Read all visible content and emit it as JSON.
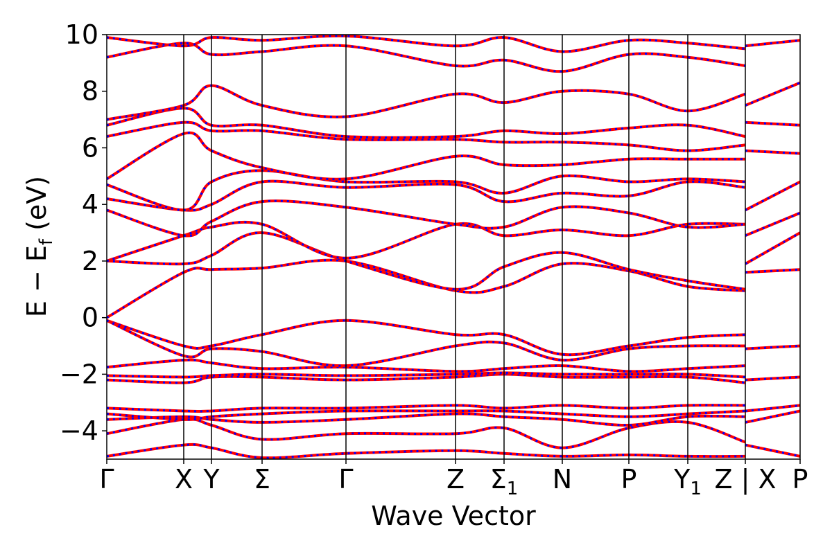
{
  "chart_data": {
    "type": "line",
    "title": "",
    "xlabel": "Wave Vector",
    "ylabel": "E − E_f (eV)",
    "ylabel_main": "E − E",
    "ylabel_sub": "f",
    "ylabel_unit": " (eV)",
    "ylim": [
      -5,
      10
    ],
    "yticks": [
      -4,
      -2,
      0,
      2,
      4,
      6,
      8,
      10
    ],
    "yticklabels": [
      "−4",
      "−2",
      "0",
      "2",
      "4",
      "6",
      "8",
      "10"
    ],
    "grid": false,
    "legend": "none",
    "xlim": [
      0,
      1
    ],
    "high_symmetry_points": [
      {
        "label": "Γ",
        "x": 0.0
      },
      {
        "label": "X",
        "x": 0.111
      },
      {
        "label": "Y",
        "x": 0.151
      },
      {
        "label": "Σ",
        "x": 0.224
      },
      {
        "label": "Γ",
        "x": 0.345
      },
      {
        "label": "Z",
        "x": 0.503
      },
      {
        "label": "Σ",
        "sub": "1",
        "x": 0.573
      },
      {
        "label": "N",
        "x": 0.657
      },
      {
        "label": "P",
        "x": 0.753
      },
      {
        "label": "Y",
        "sub": "1",
        "x": 0.838
      },
      {
        "label": "Z | X",
        "x": 0.921
      },
      {
        "label": "P",
        "x": 1.0
      }
    ],
    "series_style": [
      {
        "color": "#ff0000",
        "dash": "solid"
      },
      {
        "color": "#0000ff",
        "dash": "dotted"
      }
    ],
    "bands": [
      {
        "x": [
          0,
          0.111,
          0.151,
          0.224,
          0.345,
          0.503,
          0.573,
          0.657,
          0.753,
          0.838,
          0.921
        ],
        "y": [
          -4.9,
          -4.5,
          -4.6,
          -4.95,
          -4.8,
          -4.7,
          -4.8,
          -4.9,
          -4.85,
          -4.9,
          -4.9
        ]
      },
      {
        "x": [
          0,
          0.111,
          0.151,
          0.224,
          0.345,
          0.503,
          0.573,
          0.657,
          0.753,
          0.838,
          0.921
        ],
        "y": [
          -4.1,
          -3.6,
          -3.8,
          -4.3,
          -4.1,
          -4.1,
          -3.9,
          -4.6,
          -3.9,
          -3.7,
          -4.4
        ]
      },
      {
        "x": [
          0,
          0.111,
          0.151,
          0.224,
          0.345,
          0.503,
          0.573,
          0.657,
          0.753,
          0.838,
          0.921
        ],
        "y": [
          -3.6,
          -3.5,
          -3.6,
          -3.7,
          -3.6,
          -3.4,
          -3.5,
          -3.6,
          -3.8,
          -3.5,
          -3.5
        ]
      },
      {
        "x": [
          0,
          0.111,
          0.151,
          0.224,
          0.345,
          0.503,
          0.573,
          0.657,
          0.753,
          0.838,
          0.921
        ],
        "y": [
          -3.4,
          -3.6,
          -3.5,
          -3.4,
          -3.3,
          -3.3,
          -3.3,
          -3.4,
          -3.5,
          -3.4,
          -3.3
        ]
      },
      {
        "x": [
          0,
          0.111,
          0.151,
          0.224,
          0.345,
          0.503,
          0.573,
          0.657,
          0.753,
          0.838,
          0.921
        ],
        "y": [
          -3.2,
          -3.3,
          -3.3,
          -3.2,
          -3.2,
          -3.1,
          -3.2,
          -3.1,
          -3.2,
          -3.1,
          -3.1
        ]
      },
      {
        "x": [
          0,
          0.111,
          0.151,
          0.224,
          0.345,
          0.503,
          0.573,
          0.657,
          0.753,
          0.838,
          0.921
        ],
        "y": [
          -2.2,
          -2.3,
          -2.1,
          -2.1,
          -2.2,
          -2.1,
          -2.0,
          -2.1,
          -2.1,
          -2.1,
          -2.3
        ]
      },
      {
        "x": [
          0,
          0.111,
          0.151,
          0.224,
          0.345,
          0.503,
          0.573,
          0.657,
          0.753,
          0.838,
          0.921
        ],
        "y": [
          -2.05,
          -2.1,
          -2.05,
          -2.0,
          -2.05,
          -2.0,
          -1.95,
          -2.0,
          -2.0,
          -2.0,
          -2.1
        ]
      },
      {
        "x": [
          0,
          0.111,
          0.151,
          0.224,
          0.345,
          0.503,
          0.573,
          0.657,
          0.753,
          0.838,
          0.921
        ],
        "y": [
          -1.75,
          -1.5,
          -1.6,
          -1.8,
          -1.75,
          -1.9,
          -1.8,
          -1.7,
          -1.9,
          -1.8,
          -1.7
        ]
      },
      {
        "x": [
          0,
          0.111,
          0.151,
          0.224,
          0.345,
          0.503,
          0.573,
          0.657,
          0.753,
          0.838,
          0.921
        ],
        "y": [
          -0.1,
          -1.0,
          -1.0,
          -0.6,
          -0.1,
          -0.6,
          -0.6,
          -1.3,
          -1.0,
          -0.7,
          -0.6
        ]
      },
      {
        "x": [
          0,
          0.111,
          0.151,
          0.224,
          0.345,
          0.503,
          0.573,
          0.657,
          0.753,
          0.838,
          0.921
        ],
        "y": [
          -0.1,
          -1.35,
          -1.1,
          -1.2,
          -1.7,
          -1.0,
          -0.9,
          -1.5,
          -1.1,
          -1.0,
          -1.0
        ]
      },
      {
        "x": [
          0,
          0.111,
          0.151,
          0.224,
          0.345,
          0.503,
          0.573,
          0.657,
          0.753,
          0.838,
          0.921
        ],
        "y": [
          0.0,
          1.6,
          1.7,
          1.75,
          2.0,
          0.95,
          1.1,
          1.9,
          1.65,
          1.1,
          0.95
        ]
      },
      {
        "x": [
          0,
          0.111,
          0.151,
          0.224,
          0.345,
          0.503,
          0.573,
          0.657,
          0.753,
          0.838,
          0.921
        ],
        "y": [
          2.0,
          1.9,
          2.2,
          3.0,
          2.0,
          1.0,
          1.8,
          2.3,
          1.7,
          1.3,
          1.0
        ]
      },
      {
        "x": [
          0,
          0.111,
          0.151,
          0.224,
          0.345,
          0.503,
          0.573,
          0.657,
          0.753,
          0.838,
          0.921
        ],
        "y": [
          2.0,
          2.9,
          3.2,
          3.3,
          2.1,
          3.3,
          2.9,
          3.1,
          2.9,
          3.3,
          3.3
        ]
      },
      {
        "x": [
          0,
          0.111,
          0.151,
          0.224,
          0.345,
          0.503,
          0.573,
          0.657,
          0.753,
          0.838,
          0.921
        ],
        "y": [
          3.8,
          2.9,
          3.4,
          4.1,
          3.9,
          3.3,
          3.2,
          3.9,
          3.7,
          3.2,
          3.3
        ]
      },
      {
        "x": [
          0,
          0.111,
          0.151,
          0.224,
          0.345,
          0.503,
          0.573,
          0.657,
          0.753,
          0.838,
          0.921
        ],
        "y": [
          4.2,
          3.8,
          4.0,
          4.8,
          4.6,
          4.7,
          4.1,
          4.4,
          4.3,
          4.8,
          4.6
        ]
      },
      {
        "x": [
          0,
          0.111,
          0.151,
          0.224,
          0.345,
          0.503,
          0.573,
          0.657,
          0.753,
          0.838,
          0.921
        ],
        "y": [
          4.7,
          3.8,
          4.8,
          5.2,
          4.8,
          4.8,
          4.4,
          5.0,
          4.8,
          4.9,
          4.8
        ]
      },
      {
        "x": [
          0,
          0.111,
          0.151,
          0.224,
          0.345,
          0.503,
          0.573,
          0.657,
          0.753,
          0.838,
          0.921
        ],
        "y": [
          4.9,
          6.5,
          5.9,
          5.3,
          4.9,
          5.7,
          5.4,
          5.4,
          5.6,
          5.6,
          5.6
        ]
      },
      {
        "x": [
          0,
          0.111,
          0.151,
          0.224,
          0.345,
          0.503,
          0.573,
          0.657,
          0.753,
          0.838,
          0.921
        ],
        "y": [
          6.4,
          6.9,
          6.6,
          6.6,
          6.3,
          6.3,
          6.2,
          6.2,
          6.1,
          5.9,
          6.1
        ]
      },
      {
        "x": [
          0,
          0.111,
          0.151,
          0.224,
          0.345,
          0.503,
          0.573,
          0.657,
          0.753,
          0.838,
          0.921
        ],
        "y": [
          6.8,
          7.4,
          6.8,
          6.8,
          6.4,
          6.4,
          6.6,
          6.5,
          6.7,
          6.8,
          6.4
        ]
      },
      {
        "x": [
          0,
          0.111,
          0.151,
          0.224,
          0.345,
          0.503,
          0.573,
          0.657,
          0.753,
          0.838,
          0.921
        ],
        "y": [
          7.0,
          7.5,
          8.2,
          7.5,
          7.1,
          7.9,
          7.6,
          8.0,
          7.9,
          7.3,
          7.9
        ]
      },
      {
        "x": [
          0,
          0.111,
          0.151,
          0.224,
          0.345,
          0.503,
          0.573,
          0.657,
          0.753,
          0.838,
          0.921
        ],
        "y": [
          9.2,
          9.7,
          9.3,
          9.4,
          9.6,
          8.9,
          9.1,
          8.7,
          9.3,
          9.2,
          8.9
        ]
      },
      {
        "x": [
          0,
          0.111,
          0.151,
          0.224,
          0.345,
          0.503,
          0.573,
          0.657,
          0.753,
          0.838,
          0.921
        ],
        "y": [
          9.9,
          9.6,
          9.9,
          9.8,
          9.95,
          9.6,
          9.9,
          9.4,
          9.8,
          9.7,
          9.5
        ]
      },
      {
        "x": [
          0.921,
          1.0
        ],
        "y": [
          -4.5,
          -4.9
        ]
      },
      {
        "x": [
          0.921,
          1.0
        ],
        "y": [
          -3.7,
          -3.3
        ]
      },
      {
        "x": [
          0.921,
          1.0
        ],
        "y": [
          -3.3,
          -3.1
        ]
      },
      {
        "x": [
          0.921,
          1.0
        ],
        "y": [
          -2.2,
          -2.1
        ]
      },
      {
        "x": [
          0.921,
          1.0
        ],
        "y": [
          -1.1,
          -1.0
        ]
      },
      {
        "x": [
          0.921,
          1.0
        ],
        "y": [
          1.6,
          1.7
        ]
      },
      {
        "x": [
          0.921,
          1.0
        ],
        "y": [
          1.9,
          3.0
        ]
      },
      {
        "x": [
          0.921,
          1.0
        ],
        "y": [
          2.9,
          3.7
        ]
      },
      {
        "x": [
          0.921,
          1.0
        ],
        "y": [
          3.8,
          4.8
        ]
      },
      {
        "x": [
          0.921,
          1.0
        ],
        "y": [
          5.9,
          5.8
        ]
      },
      {
        "x": [
          0.921,
          1.0
        ],
        "y": [
          6.9,
          6.8
        ]
      },
      {
        "x": [
          0.921,
          1.0
        ],
        "y": [
          7.5,
          8.3
        ]
      },
      {
        "x": [
          0.921,
          1.0
        ],
        "y": [
          9.6,
          9.8
        ]
      }
    ]
  }
}
